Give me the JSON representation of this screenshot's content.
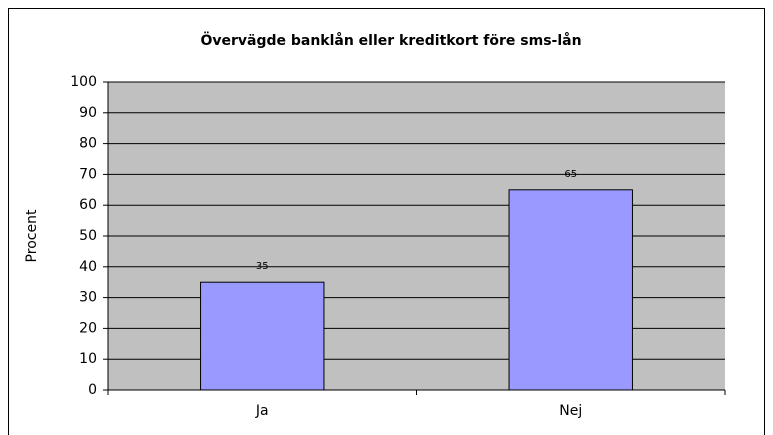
{
  "chart_data": {
    "type": "bar",
    "title": "Övervägde banklån eller kreditkort före sms-lån",
    "y_label": "Procent",
    "categories": [
      "Ja",
      "Nej"
    ],
    "values": [
      35,
      65
    ],
    "color": "#9999ff",
    "ylim": [
      0,
      100
    ],
    "yticks": [
      0,
      10,
      20,
      30,
      40,
      50,
      60,
      70,
      80,
      90,
      100
    ],
    "grid": true
  }
}
